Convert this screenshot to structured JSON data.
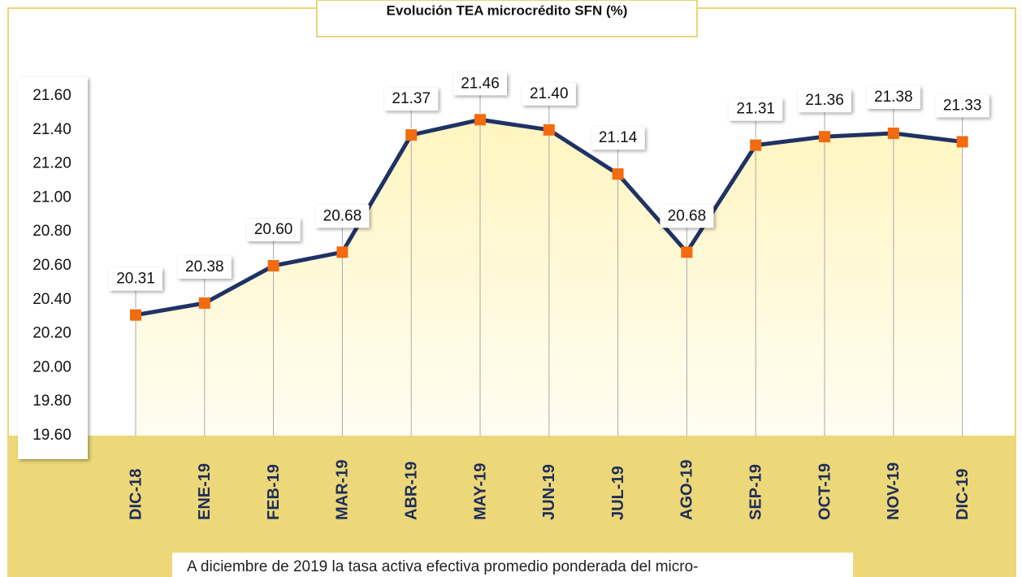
{
  "chart_data": {
    "type": "line",
    "title": "Evolución TEA microcrédito SFN (%)",
    "caption": "A diciembre de 2019 la tasa activa efectiva promedio ponderada del micro-",
    "categories": [
      "DIC-18",
      "ENE-19",
      "FEB-19",
      "MAR-19",
      "ABR-19",
      "MAY-19",
      "JUN-19",
      "JUL-19",
      "AGO-19",
      "SEP-19",
      "OCT-19",
      "NOV-19",
      "DIC-19"
    ],
    "series": [
      {
        "name": "TEA",
        "color": "#1f3264",
        "marker_color": "#f26b0f",
        "values": [
          20.31,
          20.38,
          20.6,
          20.68,
          21.37,
          21.46,
          21.4,
          21.14,
          20.68,
          21.31,
          21.36,
          21.38,
          21.33
        ],
        "value_labels": [
          "20.31",
          "20.38",
          "20.60",
          "20.68",
          "21.37",
          "21.46",
          "21.40",
          "21.14",
          "20.68",
          "21.31",
          "21.36",
          "21.38",
          "21.33"
        ]
      }
    ],
    "ylim": [
      19.6,
      21.6
    ],
    "yticks": [
      {
        "value": 19.6,
        "label": "19.60"
      },
      {
        "value": 19.8,
        "label": "19.80"
      },
      {
        "value": 20.0,
        "label": "20.00"
      },
      {
        "value": 20.2,
        "label": "20.20"
      },
      {
        "value": 20.4,
        "label": "20.40"
      },
      {
        "value": 20.6,
        "label": "20.60"
      },
      {
        "value": 20.8,
        "label": "20.80"
      },
      {
        "value": 21.0,
        "label": "21.00"
      },
      {
        "value": 21.2,
        "label": "21.20"
      },
      {
        "value": 21.4,
        "label": "21.40"
      },
      {
        "value": 21.6,
        "label": "21.60"
      }
    ]
  }
}
